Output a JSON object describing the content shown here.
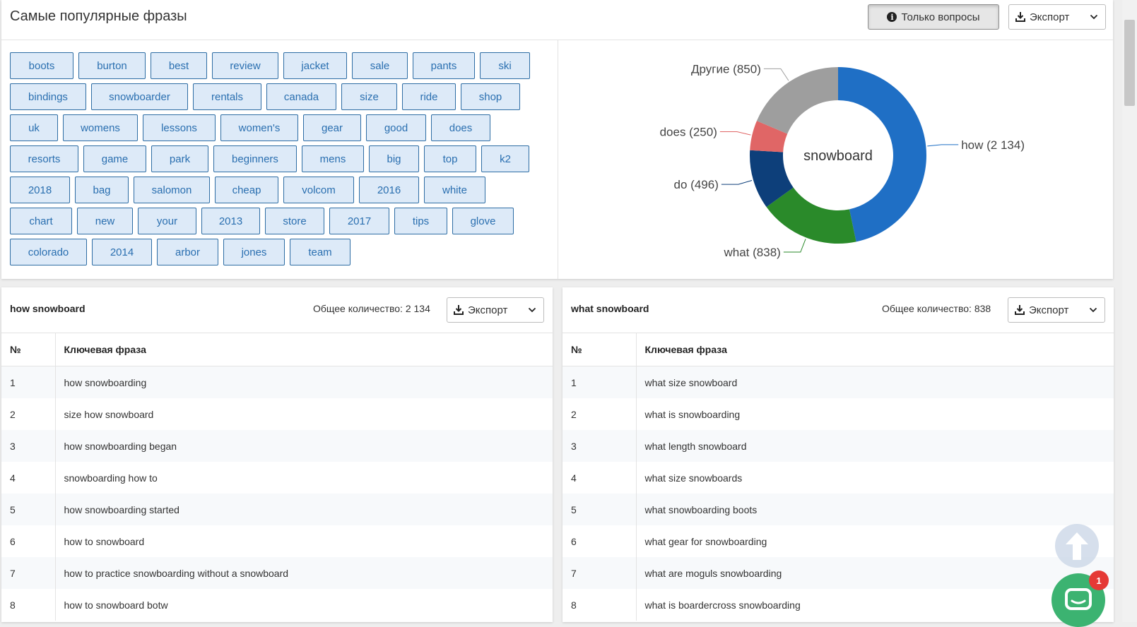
{
  "header": {
    "title": "Самые популярные фразы",
    "questions_button": "Только вопросы",
    "export_label": "Экспорт"
  },
  "tag_rows": [
    [
      "boots",
      "burton",
      "best",
      "review",
      "jacket",
      "sale",
      "pants",
      "ski"
    ],
    [
      "bindings",
      "snowboarder",
      "rentals",
      "canada",
      "size",
      "ride",
      "shop"
    ],
    [
      "uk",
      "womens",
      "lessons",
      "women's",
      "gear",
      "good",
      "does"
    ],
    [
      "resorts",
      "game",
      "park",
      "beginners",
      "mens",
      "big",
      "top",
      "k2"
    ],
    [
      "2018",
      "bag",
      "salomon",
      "cheap",
      "volcom",
      "2016",
      "white"
    ],
    [
      "chart",
      "new",
      "your",
      "2013",
      "store",
      "2017",
      "tips",
      "glove"
    ],
    [
      "colorado",
      "2014",
      "arbor",
      "jones",
      "team"
    ]
  ],
  "chart_data": {
    "type": "pie",
    "center_label": "snowboard",
    "slices": [
      {
        "label": "how (2 134)",
        "name": "how",
        "value": 2134,
        "color": "#1f6fc5"
      },
      {
        "label": "what (838)",
        "name": "what",
        "value": 838,
        "color": "#2a8a2a"
      },
      {
        "label": "do (496)",
        "name": "do",
        "value": 496,
        "color": "#0d3f7a"
      },
      {
        "label": "does (250)",
        "name": "does",
        "value": 250,
        "color": "#e06666"
      },
      {
        "label": "Другие (850)",
        "name": "Другие",
        "value": 850,
        "color": "#9e9e9e"
      }
    ]
  },
  "tables": {
    "left": {
      "title": "how snowboard",
      "total": "Общее количество: 2 134",
      "export_label": "Экспорт",
      "col_num": "№",
      "col_phrase": "Ключевая фраза",
      "rows": [
        {
          "n": "1",
          "phrase": "how snowboarding"
        },
        {
          "n": "2",
          "phrase": "size how snowboard"
        },
        {
          "n": "3",
          "phrase": "how snowboarding began"
        },
        {
          "n": "4",
          "phrase": "snowboarding how to"
        },
        {
          "n": "5",
          "phrase": "how snowboarding started"
        },
        {
          "n": "6",
          "phrase": "how to snowboard"
        },
        {
          "n": "7",
          "phrase": "how to practice snowboarding without a snowboard"
        },
        {
          "n": "8",
          "phrase": "how to snowboard botw"
        }
      ]
    },
    "right": {
      "title": "what snowboard",
      "total": "Общее количество: 838",
      "export_label": "Экспорт",
      "col_num": "№",
      "col_phrase": "Ключевая фраза",
      "rows": [
        {
          "n": "1",
          "phrase": "what size snowboard"
        },
        {
          "n": "2",
          "phrase": "what is snowboarding"
        },
        {
          "n": "3",
          "phrase": "what length snowboard"
        },
        {
          "n": "4",
          "phrase": "what size snowboards"
        },
        {
          "n": "5",
          "phrase": "what snowboarding boots"
        },
        {
          "n": "6",
          "phrase": "what gear for snowboarding"
        },
        {
          "n": "7",
          "phrase": "what are moguls snowboarding"
        },
        {
          "n": "8",
          "phrase": "what is boardercross snowboarding"
        }
      ]
    }
  },
  "chat": {
    "badge": "1"
  },
  "icons": {
    "info": "info-circle-icon",
    "download": "download-icon",
    "chevron": "chevron-down-icon",
    "scroll_top": "arrow-up-icon",
    "chat": "chat-icon"
  }
}
